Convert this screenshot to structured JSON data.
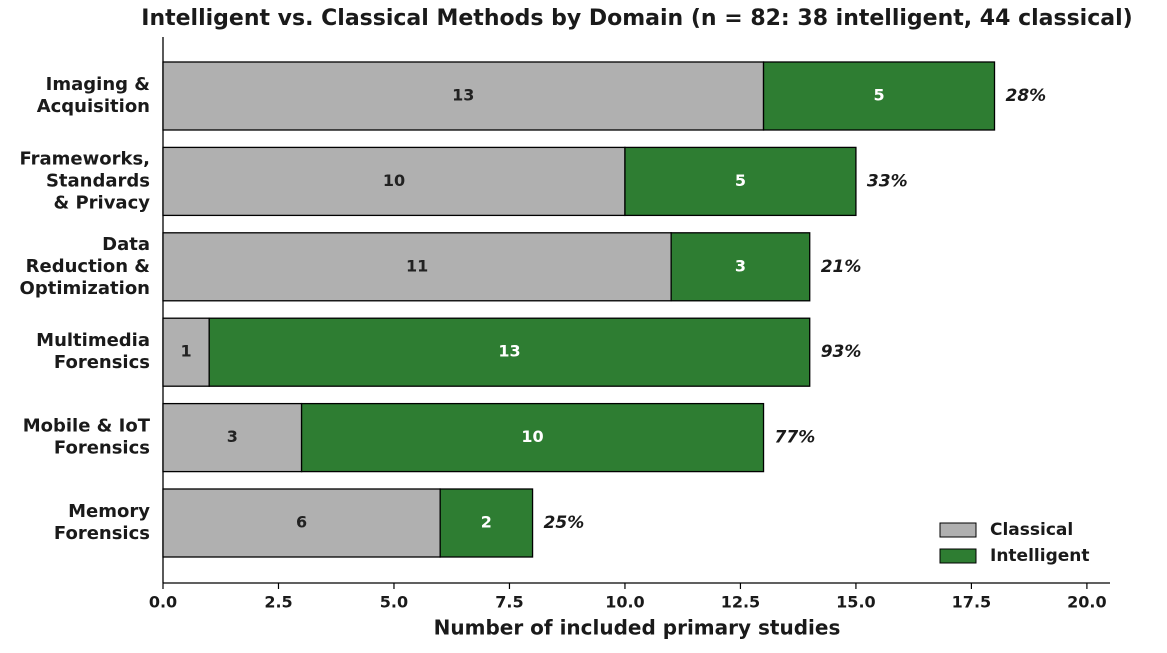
{
  "chart_data": {
    "type": "stacked-barh",
    "title": "Intelligent vs. Classical Methods by Domain (n = 82: 38 intelligent, 44 classical)",
    "xlabel": "Number of included primary studies",
    "categories": [
      "Imaging &\nAcquisition",
      "Frameworks,\nStandards\n& Privacy",
      "Data\nReduction &\nOptimization",
      "Multimedia\nForensics",
      "Mobile & IoT\nForensics",
      "Memory\nForensics"
    ],
    "series": [
      {
        "name": "Classical",
        "color": "#b0b0b0",
        "label_color": "#222222",
        "values": [
          13,
          10,
          11,
          1,
          3,
          6
        ]
      },
      {
        "name": "Intelligent",
        "color": "#2e7d32",
        "label_color": "#ffffff",
        "values": [
          5,
          5,
          3,
          13,
          10,
          2
        ]
      }
    ],
    "share_labels": [
      "28%",
      "33%",
      "21%",
      "93%",
      "77%",
      "25%"
    ],
    "xlim": [
      0,
      20.5
    ],
    "xticks": [
      {
        "value": 0,
        "label": "0.0"
      },
      2.5,
      {
        "value": 5,
        "label": "5.0"
      },
      7.5,
      {
        "value": 10,
        "label": "10.0"
      },
      12.5,
      {
        "value": 15,
        "label": "15.0"
      },
      17.5,
      {
        "value": 20,
        "label": "20.0"
      }
    ],
    "legend": "lower right"
  }
}
